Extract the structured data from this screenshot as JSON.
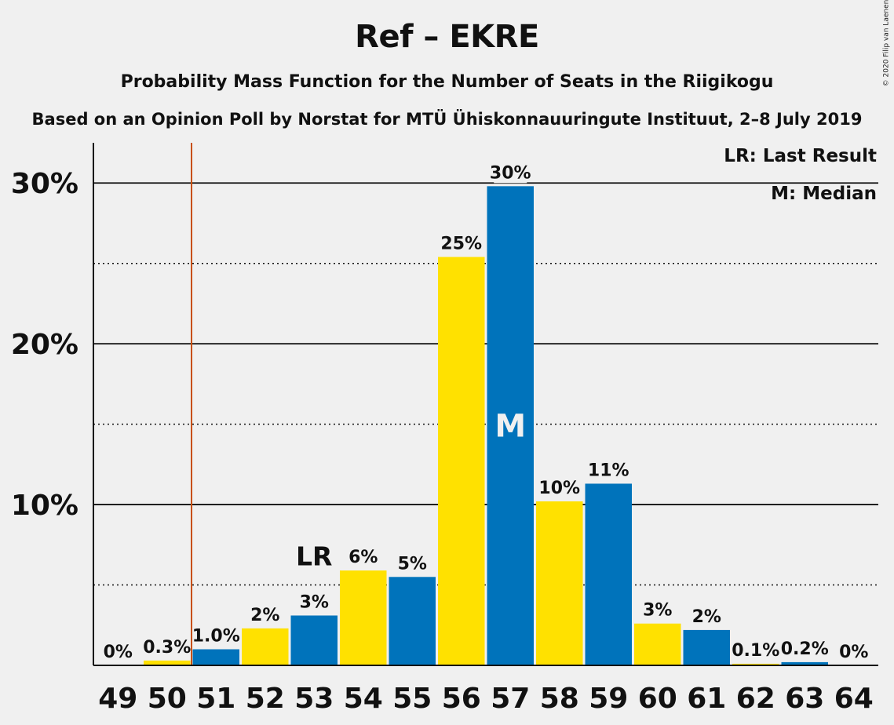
{
  "chart_data": {
    "type": "bar",
    "title": "Ref – EKRE",
    "subtitle": "Probability Mass Function for the Number of Seats in the Riigikogu",
    "subtitle2": "Based on an Opinion Poll by Norstat for MTÜ Ühiskonnauuringute Instituut, 2–8 July 2019",
    "copyright": "© 2020 Filip van Laenen",
    "legend": {
      "lr": "LR: Last Result",
      "m": "M: Median"
    },
    "categories": [
      "49",
      "50",
      "51",
      "52",
      "53",
      "54",
      "55",
      "56",
      "57",
      "58",
      "59",
      "60",
      "61",
      "62",
      "63",
      "64"
    ],
    "values": [
      0,
      0.3,
      1.0,
      2.3,
      3.1,
      5.9,
      5.5,
      25.4,
      29.8,
      10.2,
      11.3,
      2.6,
      2.2,
      0.1,
      0.2,
      0
    ],
    "value_labels": [
      "0%",
      "0.3%",
      "1.0%",
      "2%",
      "3%",
      "6%",
      "5%",
      "25%",
      "30%",
      "10%",
      "11%",
      "3%",
      "2%",
      "0.1%",
      "0.2%",
      "0%"
    ],
    "bar_colors": [
      "#0073bb",
      "#ffe100",
      "#0073bb",
      "#ffe100",
      "#0073bb",
      "#ffe100",
      "#0073bb",
      "#ffe100",
      "#0073bb",
      "#ffe100",
      "#0073bb",
      "#ffe100",
      "#0073bb",
      "#ffe100",
      "#0073bb",
      "#ffe100"
    ],
    "ytick_labels": [
      "10%",
      "20%",
      "30%"
    ],
    "yticks": [
      10,
      20,
      30
    ],
    "minor_gridlines": [
      5,
      15,
      25
    ],
    "ylim": [
      0,
      32.5
    ],
    "last_result": {
      "seats": "53",
      "label": "LR",
      "line_after": "50",
      "line_color": "#c8500a"
    },
    "median": {
      "seats": "57",
      "label": "M"
    },
    "colors": {
      "blue": "#0073bb",
      "yellow": "#ffe100",
      "background": "#f0f0f0"
    }
  }
}
